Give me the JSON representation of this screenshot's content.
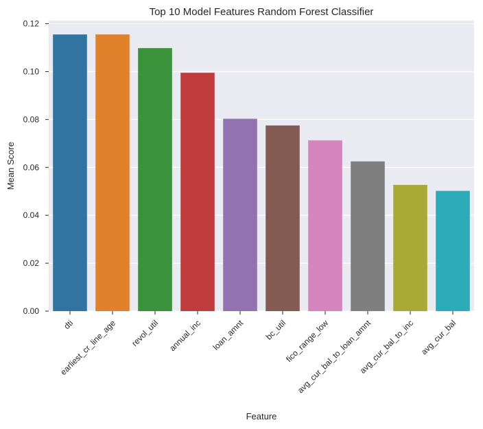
{
  "chart_data": {
    "type": "bar",
    "title": "Top 10 Model Features Random Forest Classifier",
    "xlabel": "Feature",
    "ylabel": "Mean Score",
    "categories": [
      "dti",
      "earliest_cr_line_age",
      "revol_util",
      "annual_inc",
      "loan_amnt",
      "bc_util",
      "fico_range_low",
      "avg_cur_bal_to_loan_amnt",
      "avg_cur_bal_to_inc",
      "avg_cur_bal"
    ],
    "values": [
      0.1155,
      0.1155,
      0.1098,
      0.0995,
      0.0803,
      0.0775,
      0.0713,
      0.0625,
      0.0527,
      0.0502
    ],
    "colors": [
      "#3274a1",
      "#e1812c",
      "#3a923a",
      "#c03d3e",
      "#9372b2",
      "#845b53",
      "#d684bd",
      "#7f7f7f",
      "#a9aa35",
      "#2eabb8"
    ],
    "yticks": [
      0.0,
      0.02,
      0.04,
      0.06,
      0.08,
      0.1,
      0.12
    ],
    "ytick_labels": [
      "0.00",
      "0.02",
      "0.04",
      "0.06",
      "0.08",
      "0.10",
      "0.12"
    ],
    "ylim": [
      0,
      0.1213
    ],
    "grid": true,
    "style": "seaborn-darkgrid",
    "background_color": "#eaeaf2",
    "grid_color": "#ffffff"
  }
}
